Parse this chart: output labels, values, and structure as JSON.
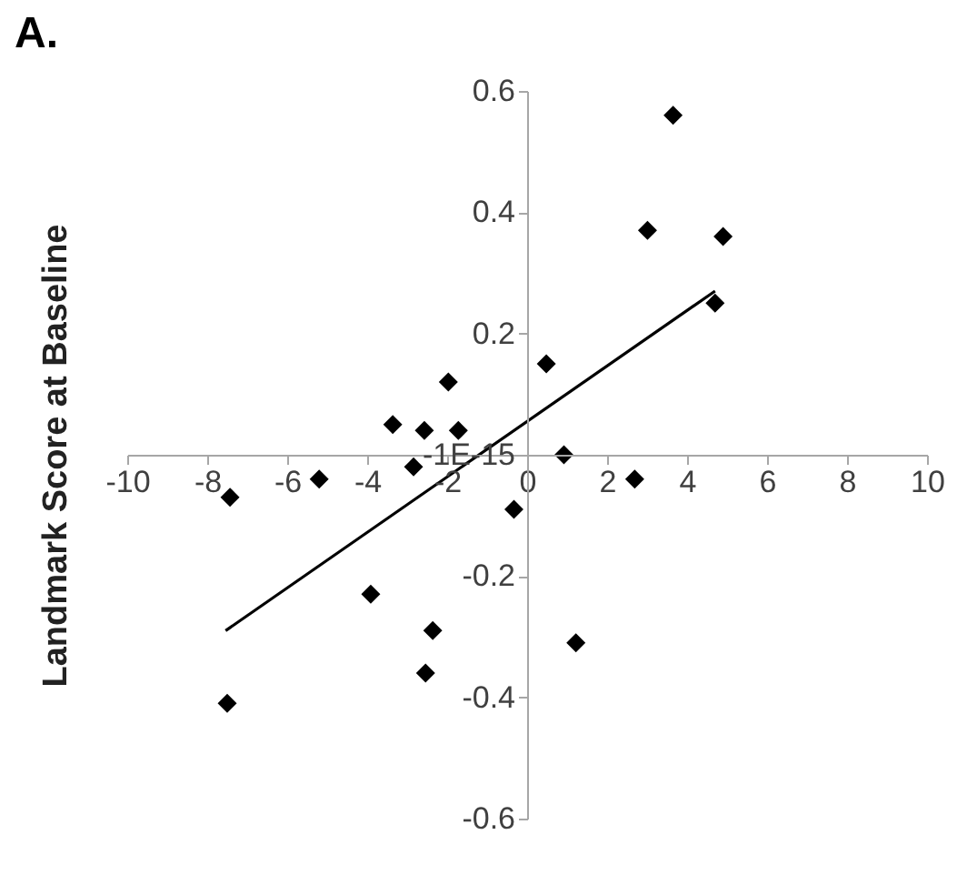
{
  "chart_data": {
    "type": "scatter",
    "title": "A.",
    "ylabel": "Landmark Score at Baseline",
    "xlim": [
      -10,
      10
    ],
    "xticks": [
      -10,
      -8,
      -6,
      -4,
      -2,
      0,
      2,
      4,
      6,
      8,
      10
    ],
    "ylim": [
      -0.6,
      0.6
    ],
    "yticks": [
      -0.6,
      -0.4,
      -0.2,
      {
        "value": 0,
        "label": "-1E-15"
      },
      0.2,
      0.4,
      0.6
    ],
    "grid": false,
    "marker": "diamond",
    "series": [
      {
        "color": "#000000",
        "x": [
          3.65,
          3.01,
          4.9,
          4.7,
          0.48,
          -1.97,
          -3.36,
          -2.57,
          -1.72,
          -2.84,
          0.92,
          -5.2,
          -7.43,
          -0.33,
          2.69,
          -3.91,
          -2.36,
          1.22,
          -2.54,
          -7.5
        ],
        "values": [
          0.56,
          0.37,
          0.36,
          0.25,
          0.15,
          0.12,
          0.05,
          0.04,
          0.04,
          -0.02,
          0.0,
          -0.04,
          -0.07,
          -0.09,
          -0.04,
          -0.23,
          -0.29,
          -0.31,
          -0.36,
          -0.41
        ]
      },
      {
        "type": "line",
        "color": "#000000",
        "line_style": "solid",
        "marker": "none",
        "x": [
          -7.54,
          4.7
        ],
        "values": [
          -0.29,
          0.27
        ]
      }
    ]
  }
}
